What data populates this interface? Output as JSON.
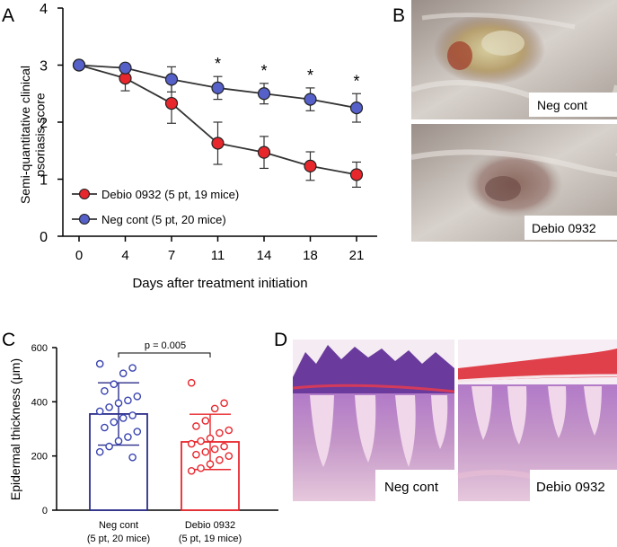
{
  "panels": {
    "a": {
      "letter": "A"
    },
    "b": {
      "letter": "B",
      "photo_labels": [
        "Neg cont",
        "Debio 0932"
      ]
    },
    "c": {
      "letter": "C"
    },
    "d": {
      "letter": "D",
      "photo_labels": [
        "Neg cont",
        "Debio 0932"
      ]
    }
  },
  "colors": {
    "red": "#e8272d",
    "blue": "#5560c8",
    "dark_blue": "#2b2e8a",
    "open_red": "#e8272d",
    "open_blue": "#3a44b0"
  },
  "chart_data": [
    {
      "panel": "A",
      "type": "line",
      "xlabel": "Days after treatment initiation",
      "ylabel": "Semi-quantitative clinical psoriasis score",
      "categories": [
        "0",
        "4",
        "7",
        "11",
        "14",
        "18",
        "21"
      ],
      "ylim": [
        0,
        4
      ],
      "yticks": [
        "0",
        "1",
        "2",
        "3",
        "4"
      ],
      "significance_marker": "*",
      "significant_categories": [
        "11",
        "14",
        "18",
        "21"
      ],
      "legend_position": "lower-left",
      "series": [
        {
          "name": "Debio 0932 (5 pt, 19 mice)",
          "color": "red",
          "values": [
            3.0,
            2.77,
            2.33,
            1.63,
            1.47,
            1.23,
            1.08
          ],
          "errors": [
            0,
            0.22,
            0.35,
            0.37,
            0.28,
            0.25,
            0.22
          ]
        },
        {
          "name": "Neg cont (5 pt, 20 mice)",
          "color": "blue",
          "values": [
            3.0,
            2.95,
            2.75,
            2.6,
            2.5,
            2.4,
            2.25
          ],
          "errors": [
            0,
            0,
            0.22,
            0.2,
            0.18,
            0.2,
            0.25
          ]
        }
      ]
    },
    {
      "panel": "C",
      "type": "bar",
      "ylabel": "Epidermal thickness (μm)",
      "ylim": [
        0,
        600
      ],
      "yticks": [
        "0",
        "200",
        "400",
        "600"
      ],
      "annotation": "p = 0.005",
      "categories": [
        "Neg cont",
        "Debio 0932"
      ],
      "category_sublabels": [
        "(5 pt, 20 mice)",
        "(5 pt, 19 mice)"
      ],
      "values": [
        355,
        252
      ],
      "sd": [
        115,
        102
      ],
      "points": [
        [
          540,
          525,
          505,
          465,
          440,
          420,
          405,
          395,
          380,
          365,
          350,
          340,
          325,
          305,
          290,
          270,
          255,
          235,
          215,
          195
        ],
        [
          470,
          395,
          375,
          330,
          310,
          295,
          285,
          265,
          255,
          245,
          235,
          225,
          215,
          205,
          200,
          185,
          170,
          155,
          145
        ]
      ]
    }
  ]
}
